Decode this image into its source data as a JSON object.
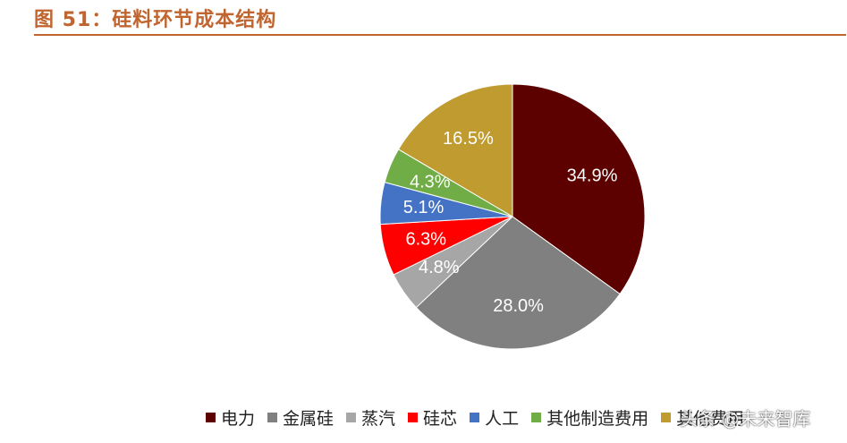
{
  "figure": {
    "title": "图 51：硅料环节成本结构"
  },
  "watermark": {
    "text": "头条 @未来智库"
  },
  "chart_data": {
    "type": "pie",
    "slices": [
      {
        "name": "电力",
        "value": 34.9,
        "label": "34.9%",
        "color": "#5c0000"
      },
      {
        "name": "金属硅",
        "value": 28.0,
        "label": "28.0%",
        "color": "#808080"
      },
      {
        "name": "蒸汽",
        "value": 4.8,
        "label": "4.8%",
        "color": "#a6a6a6"
      },
      {
        "name": "硅芯",
        "value": 6.3,
        "label": "6.3%",
        "color": "#ff0000"
      },
      {
        "name": "人工",
        "value": 5.1,
        "label": "5.1%",
        "color": "#4472c4"
      },
      {
        "name": "其他制造费用",
        "value": 4.3,
        "label": "4.3%",
        "color": "#70ad47"
      },
      {
        "name": "其他费用",
        "value": 16.5,
        "label": "16.5%",
        "color": "#bf9b30"
      }
    ],
    "legend_position": "bottom",
    "start_angle": "12 o'clock",
    "direction": "clockwise"
  }
}
